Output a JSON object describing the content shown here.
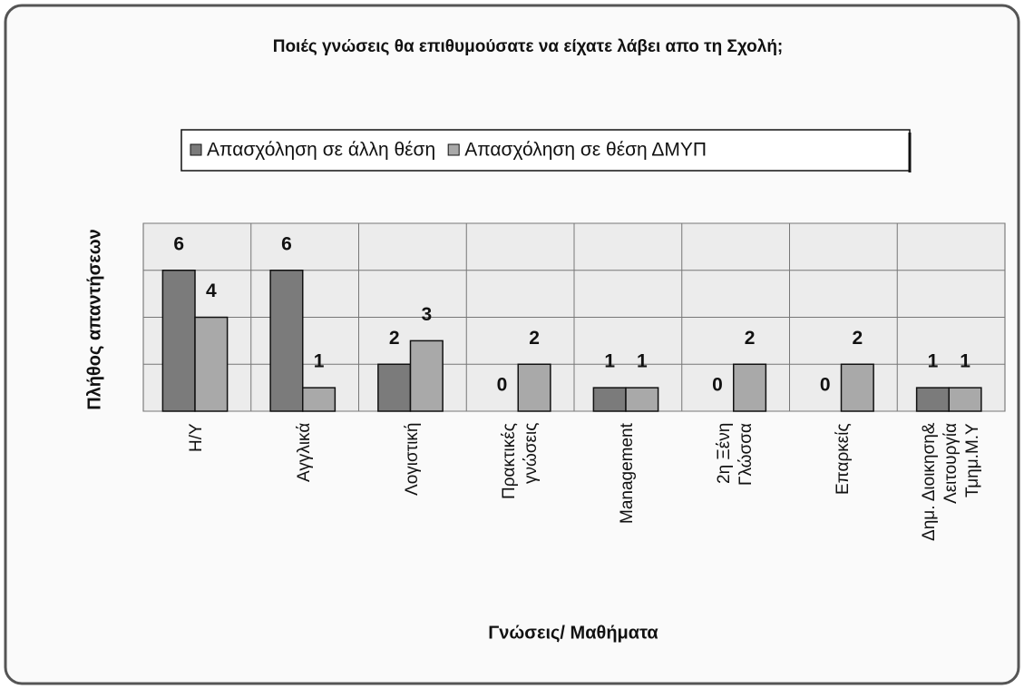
{
  "chart_data": {
    "type": "bar",
    "title": "Ποιές γνώσεις θα επιθυμούσατε να είχατε λάβει απο τη Σχολή;",
    "x_label": "Γνώσεις/ Μαθήματα",
    "y_label": "Πλήθος απαντήσεων",
    "categories": [
      "Η/Υ",
      "Αγγλικά",
      "Λογιστική",
      "Πρακτικές\nγνώσεις",
      "Management",
      "2η Ξένη\nΓλώσσα",
      "Επαρκείς",
      "Δημ. Διοικηση&\nΛειτουργία\nΤμημ.Μ.Υ"
    ],
    "series": [
      {
        "name": "Απασχόληση σε άλλη θέση",
        "color": "#7b7b7b",
        "values": [
          6,
          6,
          2,
          0,
          1,
          0,
          0,
          1
        ]
      },
      {
        "name": "Απασχόληση σε θέση ΔΜΥΠ",
        "color": "#a9a9a9",
        "values": [
          4,
          1,
          3,
          2,
          1,
          2,
          2,
          1
        ]
      }
    ],
    "ylim": [
      0,
      8
    ],
    "yticks": [
      0,
      2,
      4,
      6,
      8
    ],
    "grid": true,
    "legend": "top"
  }
}
